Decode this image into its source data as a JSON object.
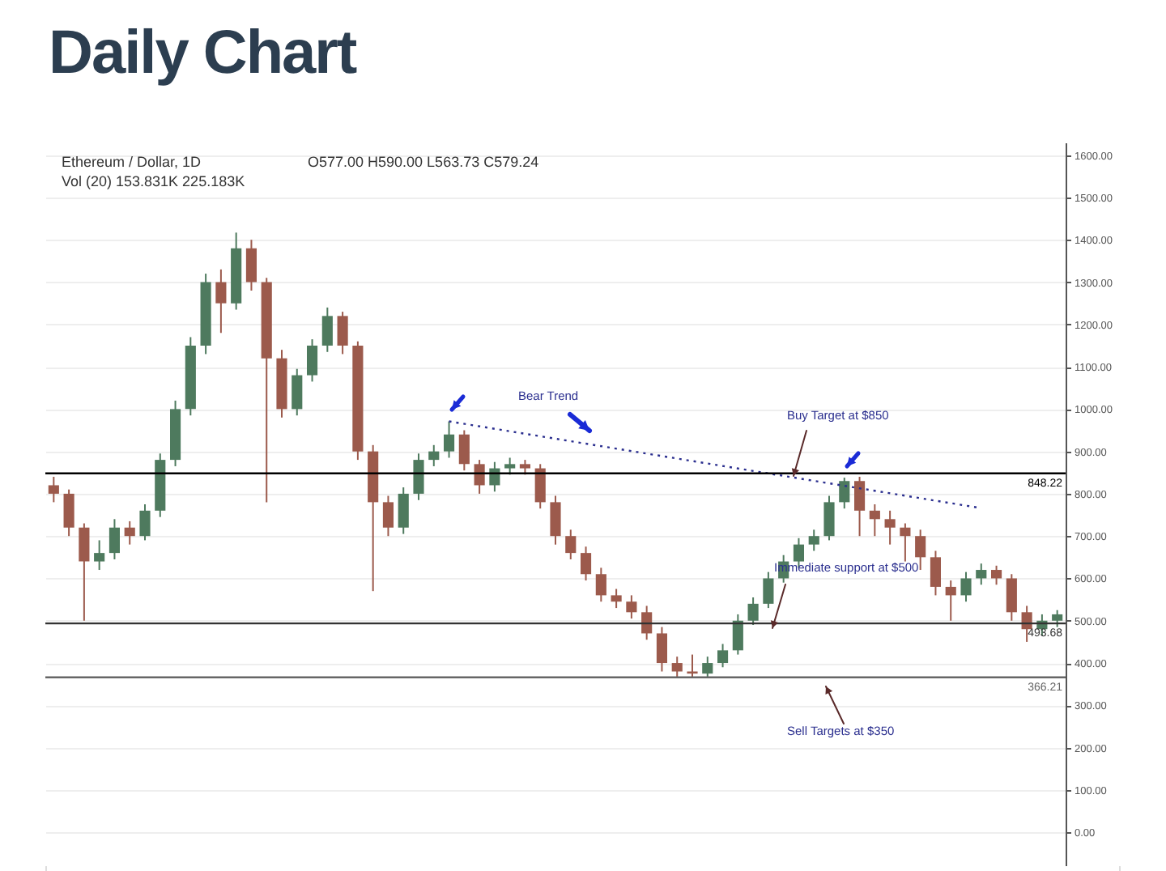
{
  "chart_data": {
    "type": "candlestick",
    "title": "Daily Chart",
    "categories": [
      null,
      null,
      null,
      null,
      null,
      null,
      null,
      null,
      null,
      null,
      null,
      null,
      null,
      null,
      null,
      null,
      null,
      null,
      null,
      null,
      null,
      null,
      null,
      null,
      null,
      null,
      null,
      null,
      null,
      null,
      null,
      null,
      null,
      null,
      null,
      null,
      null,
      null,
      null,
      null,
      null,
      null,
      null,
      null,
      null,
      null,
      null,
      null,
      null,
      null,
      null,
      null,
      null,
      null,
      null,
      null,
      null,
      null,
      null,
      null,
      null,
      null,
      null,
      null,
      null,
      null,
      null
    ],
    "ohlc": [
      [
        820,
        840,
        780,
        800
      ],
      [
        800,
        810,
        700,
        720
      ],
      [
        720,
        730,
        500,
        640
      ],
      [
        640,
        690,
        620,
        660
      ],
      [
        660,
        740,
        645,
        720
      ],
      [
        720,
        735,
        680,
        700
      ],
      [
        700,
        775,
        690,
        760
      ],
      [
        760,
        895,
        745,
        880
      ],
      [
        880,
        1020,
        865,
        1000
      ],
      [
        1000,
        1170,
        985,
        1150
      ],
      [
        1150,
        1320,
        1130,
        1300
      ],
      [
        1300,
        1330,
        1180,
        1250
      ],
      [
        1250,
        1417,
        1235,
        1380
      ],
      [
        1380,
        1400,
        1280,
        1300
      ],
      [
        1300,
        1310,
        780,
        1120
      ],
      [
        1120,
        1140,
        980,
        1000
      ],
      [
        1000,
        1095,
        985,
        1080
      ],
      [
        1080,
        1165,
        1065,
        1150
      ],
      [
        1150,
        1240,
        1135,
        1220
      ],
      [
        1220,
        1230,
        1130,
        1150
      ],
      [
        1150,
        1160,
        880,
        900
      ],
      [
        900,
        915,
        570,
        780
      ],
      [
        780,
        795,
        700,
        720
      ],
      [
        720,
        815,
        705,
        800
      ],
      [
        800,
        895,
        785,
        880
      ],
      [
        880,
        915,
        865,
        900
      ],
      [
        900,
        971,
        885,
        940
      ],
      [
        940,
        950,
        855,
        870
      ],
      [
        870,
        880,
        800,
        820
      ],
      [
        820,
        875,
        805,
        860
      ],
      [
        860,
        885,
        845,
        870
      ],
      [
        870,
        880,
        845,
        860
      ],
      [
        860,
        870,
        765,
        780
      ],
      [
        780,
        795,
        680,
        700
      ],
      [
        700,
        715,
        645,
        660
      ],
      [
        660,
        675,
        595,
        610
      ],
      [
        610,
        625,
        545,
        560
      ],
      [
        560,
        575,
        530,
        545
      ],
      [
        545,
        560,
        505,
        520
      ],
      [
        520,
        535,
        455,
        470
      ],
      [
        470,
        485,
        380,
        400
      ],
      [
        400,
        415,
        366,
        380
      ],
      [
        380,
        420,
        366,
        375
      ],
      [
        375,
        415,
        365,
        400
      ],
      [
        400,
        445,
        390,
        430
      ],
      [
        430,
        515,
        420,
        500
      ],
      [
        500,
        555,
        490,
        540
      ],
      [
        540,
        615,
        530,
        600
      ],
      [
        600,
        655,
        590,
        640
      ],
      [
        640,
        695,
        625,
        680
      ],
      [
        680,
        715,
        665,
        700
      ],
      [
        700,
        795,
        690,
        780
      ],
      [
        780,
        838,
        765,
        830
      ],
      [
        830,
        840,
        700,
        760
      ],
      [
        760,
        775,
        700,
        740
      ],
      [
        740,
        760,
        680,
        720
      ],
      [
        720,
        730,
        640,
        700
      ],
      [
        700,
        715,
        620,
        650
      ],
      [
        650,
        665,
        560,
        580
      ],
      [
        580,
        595,
        500,
        560
      ],
      [
        560,
        615,
        545,
        600
      ],
      [
        600,
        635,
        585,
        620
      ],
      [
        620,
        630,
        585,
        600
      ],
      [
        600,
        610,
        500,
        520
      ],
      [
        520,
        535,
        450,
        480
      ],
      [
        480,
        515,
        465,
        500
      ],
      [
        500,
        525,
        485,
        515
      ]
    ],
    "colors": [
      "#9c5a4c",
      "#9c5a4c",
      "#9c5a4c",
      "#4e7a5e",
      "#4e7a5e",
      "#9c5a4c",
      "#4e7a5e",
      "#4e7a5e",
      "#4e7a5e",
      "#4e7a5e",
      "#4e7a5e",
      "#9c5a4c",
      "#4e7a5e",
      "#9c5a4c",
      "#9c5a4c",
      "#9c5a4c",
      "#4e7a5e",
      "#4e7a5e",
      "#4e7a5e",
      "#9c5a4c",
      "#9c5a4c",
      "#9c5a4c",
      "#9c5a4c",
      "#4e7a5e",
      "#4e7a5e",
      "#4e7a5e",
      "#4e7a5e",
      "#9c5a4c",
      "#9c5a4c",
      "#4e7a5e",
      "#4e7a5e",
      "#9c5a4c",
      "#9c5a4c",
      "#9c5a4c",
      "#9c5a4c",
      "#9c5a4c",
      "#9c5a4c",
      "#9c5a4c",
      "#9c5a4c",
      "#9c5a4c",
      "#9c5a4c",
      "#9c5a4c",
      "#9c5a4c",
      "#4e7a5e",
      "#4e7a5e",
      "#4e7a5e",
      "#4e7a5e",
      "#4e7a5e",
      "#4e7a5e",
      "#4e7a5e",
      "#4e7a5e",
      "#4e7a5e",
      "#4e7a5e",
      "#9c5a4c",
      "#9c5a4c",
      "#9c5a4c",
      "#9c5a4c",
      "#9c5a4c",
      "#9c5a4c",
      "#9c5a4c",
      "#4e7a5e",
      "#4e7a5e",
      "#9c5a4c",
      "#9c5a4c",
      "#9c5a4c",
      "#4e7a5e",
      "#4e7a5e"
    ],
    "series": [
      {
        "type": "line",
        "color": "#2b2f8f",
        "line_style": "dotted",
        "marker": "none",
        "values": [
          null,
          null,
          null,
          null,
          null,
          null,
          null,
          null,
          null,
          null,
          null,
          null,
          null,
          null,
          null,
          null,
          null,
          null,
          null,
          null,
          null,
          null,
          null,
          null,
          null,
          null,
          971,
          null,
          null,
          null,
          null,
          null,
          null,
          null,
          null,
          null,
          null,
          null,
          null,
          null,
          null,
          null,
          null,
          null,
          null,
          null,
          null,
          null,
          null,
          null,
          null,
          null,
          null,
          null,
          null,
          null,
          null,
          null,
          null,
          null,
          null,
          766,
          null,
          null,
          null,
          null,
          null
        ]
      }
    ],
    "ylim": [
      -80,
      1630
    ],
    "yticks": [
      {
        "value": 0,
        "label": "0.00"
      },
      {
        "value": 100,
        "label": "100.00"
      },
      {
        "value": 200,
        "label": "200.00"
      },
      {
        "value": 300,
        "label": "300.00"
      },
      {
        "value": 400,
        "label": "400.00"
      },
      {
        "value": 500,
        "label": "500.00"
      },
      {
        "value": 600,
        "label": "600.00"
      },
      {
        "value": 700,
        "label": "700.00"
      },
      {
        "value": 800,
        "label": "800.00"
      },
      {
        "value": 900,
        "label": "900.00"
      },
      {
        "value": 1000,
        "label": "1000.00"
      },
      {
        "value": 1100,
        "label": "1100.00"
      },
      {
        "value": 1200,
        "label": "1200.00"
      },
      {
        "value": 1300,
        "label": "1300.00"
      },
      {
        "value": 1400,
        "label": "1400.00"
      },
      {
        "value": 1500,
        "label": "1500.00"
      },
      {
        "value": 1600,
        "label": "1600.00"
      }
    ],
    "ref_lines": [
      {
        "axis": "y",
        "value": 848.22,
        "label": "848.22",
        "color": "#000000"
      },
      {
        "axis": "y",
        "value": 493.68,
        "label": "493.68",
        "color": "#333333"
      },
      {
        "axis": "y",
        "value": 366.21,
        "label": "366.21",
        "color": "#666666"
      }
    ],
    "annotations": [
      "Ethereum / Dollar, 1D",
      "O577.00 H590.00 L563.73 C579.24",
      "Vol (20) 153.831K 225.183K",
      "Bear Trend",
      "Buy Target at $850",
      "Immediate support at $500",
      "Sell Targets at $350"
    ],
    "grid": "y",
    "tick_labels": "y"
  }
}
